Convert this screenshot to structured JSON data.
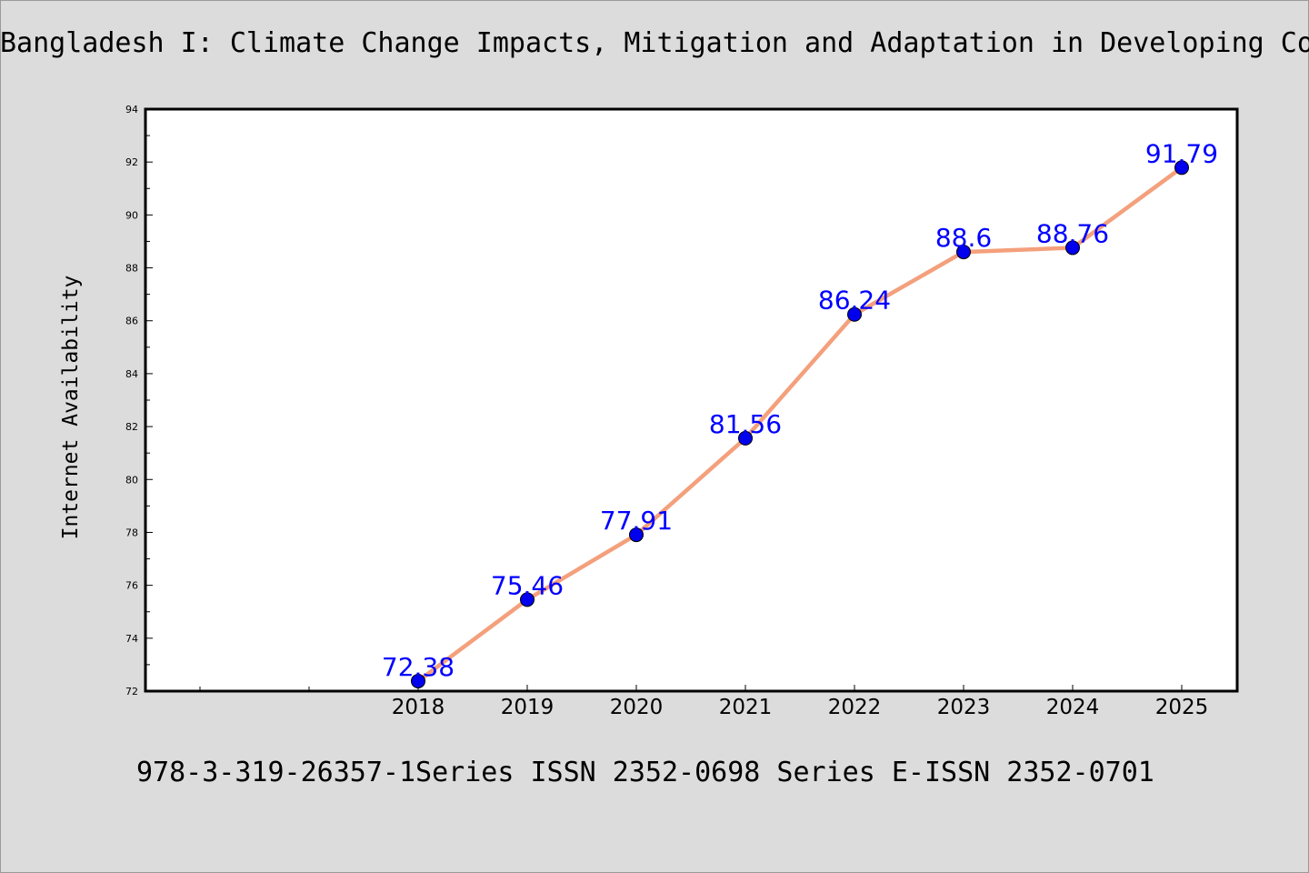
{
  "page": {
    "title": "Bangladesh I: Climate Change Impacts, Mitigation and Adaptation in Developing Countries",
    "footer": "978-3-319-26357-1Series ISSN 2352-0698 Series E-ISSN 2352-0701"
  },
  "chart_data": {
    "type": "line",
    "title": "Bangladesh I: Climate Change Impacts, Mitigation and Adaptation in Developing Countries",
    "xlabel": "",
    "ylabel": "Internet Availability",
    "categories": [
      "2018",
      "2019",
      "2020",
      "2021",
      "2022",
      "2023",
      "2024",
      "2025"
    ],
    "series": [
      {
        "values": [
          72.38,
          75.46,
          77.91,
          81.56,
          86.24,
          88.6,
          88.76,
          91.79
        ],
        "labels": [
          "72.38",
          "75.46",
          "77.91",
          "81.56",
          "86.24",
          "88.6",
          "88.76",
          "91.79"
        ]
      }
    ],
    "ylim": [
      72,
      94
    ],
    "yticks": [
      "72",
      "74",
      "76",
      "78",
      "80",
      "82",
      "84",
      "86",
      "88",
      "90",
      "92",
      "94"
    ],
    "grid": false,
    "legend": "none",
    "colors": {
      "line": "#f4a07c",
      "marker": "#0000ee",
      "data_label": "#0000ff",
      "background": "#dcdcdc",
      "plot_background": "#ffffff"
    }
  }
}
